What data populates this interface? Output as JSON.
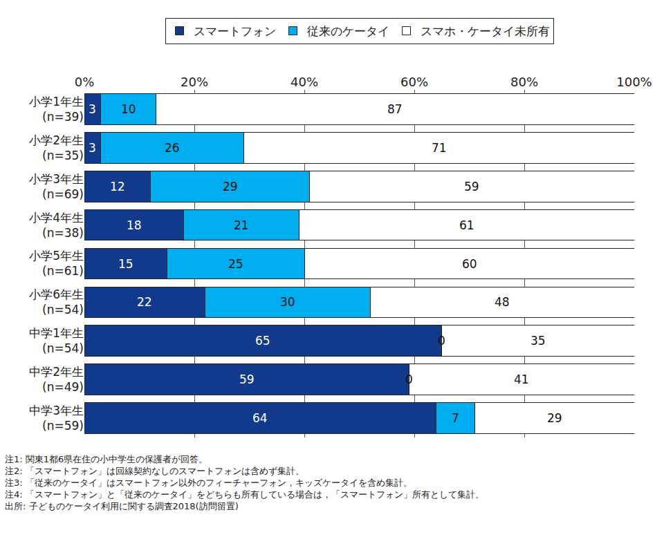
{
  "chart_data": {
    "type": "bar",
    "orientation": "horizontal",
    "stacked": true,
    "data_labels": true,
    "grid": true,
    "legend": "top",
    "categories": [
      "小学1年生\n(n=39)",
      "小学2年生\n(n=35)",
      "小学3年生\n(n=69)",
      "小学4年生\n(n=38)",
      "小学5年生\n(n=61)",
      "小学6年生\n(n=54)",
      "中学1年生\n(n=54)",
      "中学2年生\n(n=49)",
      "中学3年生\n(n=59)"
    ],
    "series": [
      {
        "name": "スマートフォン",
        "color": "#123a8c",
        "values": [
          3,
          3,
          12,
          18,
          15,
          22,
          65,
          59,
          64
        ]
      },
      {
        "name": "従来のケータイ",
        "color": "#00aeef",
        "values": [
          10,
          26,
          29,
          21,
          25,
          30,
          0,
          0,
          7
        ]
      },
      {
        "name": "スマホ・ケータイ未所有",
        "color": "#ffffff",
        "values": [
          87,
          71,
          59,
          61,
          60,
          48,
          35,
          41,
          29
        ]
      }
    ],
    "xlim": [
      0,
      100
    ],
    "xticks": [
      {
        "value": 0,
        "label": "0%"
      },
      {
        "value": 20,
        "label": "20%"
      },
      {
        "value": 40,
        "label": "40%"
      },
      {
        "value": 60,
        "label": "60%"
      },
      {
        "value": 80,
        "label": "80%"
      },
      {
        "value": 100,
        "label": "100%"
      }
    ],
    "annotations": [
      "注1: 関東1都6県在住の小中学生の保護者が回答。",
      "注2: 「スマートフォン」は回線契約なしのスマートフォンは含めず集計。",
      "注3: 「従来のケータイ」はスマートフォン以外のフィーチャーフォン，キッズケータイを含め集計。",
      "注4: 「スマートフォン」と「従来のケータイ」をどちらも所有している場合は，「スマートフォン」所有として集計。",
      "出所: 子どものケータイ利用に関する調査2018(訪問留置)"
    ]
  }
}
